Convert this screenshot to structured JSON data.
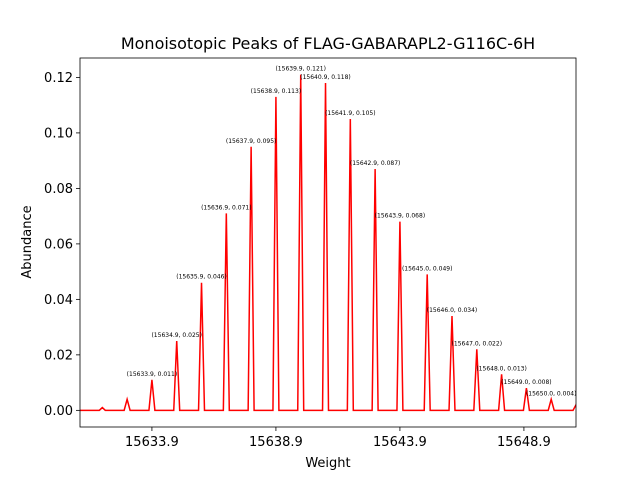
{
  "chart_data": {
    "type": "line",
    "title": "Monoisotopic Peaks of FLAG-GABARAPL2-G116C-6H",
    "xlabel": "Weight",
    "ylabel": "Abundance",
    "xlim": [
      15631.0,
      15651.0
    ],
    "ylim": [
      -0.006,
      0.127
    ],
    "x_ticks": [
      15633.9,
      15638.9,
      15643.9,
      15648.9
    ],
    "x_tick_labels": [
      "15633.9",
      "15638.9",
      "15643.9",
      "15648.9"
    ],
    "y_ticks": [
      0.0,
      0.02,
      0.04,
      0.06,
      0.08,
      0.1,
      0.12
    ],
    "y_tick_labels": [
      "0.00",
      "0.02",
      "0.04",
      "0.06",
      "0.08",
      "0.10",
      "0.12"
    ],
    "line_color": "#ff0000",
    "grid": false,
    "legend": "none",
    "peaks": [
      {
        "x": 15631.9,
        "y": 0.001,
        "label": ""
      },
      {
        "x": 15632.9,
        "y": 0.004,
        "label": ""
      },
      {
        "x": 15633.9,
        "y": 0.011,
        "label": "(15633.9, 0.011)"
      },
      {
        "x": 15634.9,
        "y": 0.025,
        "label": "(15634.9, 0.025)"
      },
      {
        "x": 15635.9,
        "y": 0.046,
        "label": "(15635.9, 0.046)"
      },
      {
        "x": 15636.9,
        "y": 0.071,
        "label": "(15636.9, 0.071)"
      },
      {
        "x": 15637.9,
        "y": 0.095,
        "label": "(15637.9, 0.095)"
      },
      {
        "x": 15638.9,
        "y": 0.113,
        "label": "(15638.9, 0.113)"
      },
      {
        "x": 15639.9,
        "y": 0.121,
        "label": "(15639.9, 0.121)"
      },
      {
        "x": 15640.9,
        "y": 0.118,
        "label": "(15640.9, 0.118)"
      },
      {
        "x": 15641.9,
        "y": 0.105,
        "label": "(15641.9, 0.105)"
      },
      {
        "x": 15642.9,
        "y": 0.087,
        "label": "(15642.9, 0.087)"
      },
      {
        "x": 15643.9,
        "y": 0.068,
        "label": "(15643.9, 0.068)"
      },
      {
        "x": 15645.0,
        "y": 0.049,
        "label": "(15645.0, 0.049)"
      },
      {
        "x": 15646.0,
        "y": 0.034,
        "label": "(15646.0, 0.034)"
      },
      {
        "x": 15647.0,
        "y": 0.022,
        "label": "(15647.0, 0.022)"
      },
      {
        "x": 15648.0,
        "y": 0.013,
        "label": "(15648.0, 0.013)"
      },
      {
        "x": 15649.0,
        "y": 0.008,
        "label": "(15649.0, 0.008)"
      },
      {
        "x": 15650.0,
        "y": 0.004,
        "label": "(15650.0, 0.004)"
      },
      {
        "x": 15651.0,
        "y": 0.002,
        "label": ""
      }
    ]
  }
}
